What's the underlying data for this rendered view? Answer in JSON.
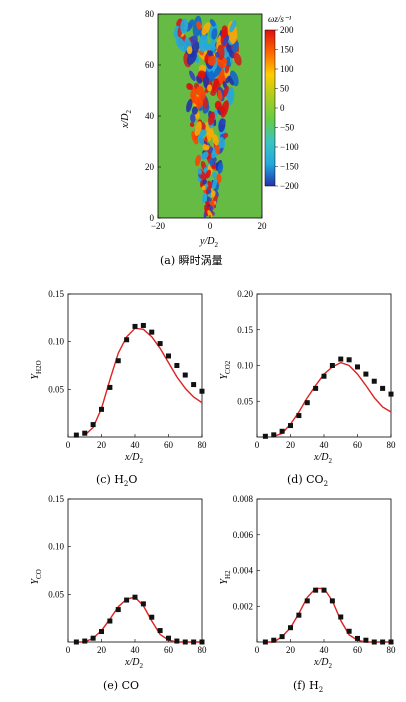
{
  "figure": {
    "colorbar": {
      "title": "ωz/s⁻¹",
      "ticks": [
        "200",
        "150",
        "100",
        "50",
        "0",
        "−50",
        "−100",
        "−150",
        "−200"
      ],
      "range": [
        -200,
        200
      ],
      "colors": [
        "#2233aa",
        "#22aadd",
        "#3cc4c0",
        "#66cc44",
        "#aacc22",
        "#ffcc00",
        "#ff6600",
        "#dd1111"
      ]
    },
    "vorticity_map": {
      "type": "heatmap",
      "background_color": "#66bb44",
      "xticks": [
        "−20",
        "0",
        "20"
      ],
      "yticks": [
        "0",
        "20",
        "40",
        "60",
        "80"
      ],
      "xlim": [
        -20,
        20
      ],
      "ylim": [
        0,
        80
      ],
      "xlabel": "y/D",
      "xlabel_sub": "2",
      "ylabel": "x/D",
      "ylabel_sub": "2"
    },
    "captions": {
      "a": "(a) 瞬时涡量",
      "c": "(c) H",
      "c_sub": "2",
      "c_tail": "O",
      "d": "(d) CO",
      "d_sub": "2",
      "e": "(e) CO",
      "f": "(f) H",
      "f_sub": "2"
    }
  },
  "chart_data": [
    {
      "type": "line",
      "id": "c",
      "ylabel": "Y",
      "ylabel_sub": "H2O",
      "xlabel": "x/D",
      "xlabel_sub": "2",
      "xlim": [
        0,
        80
      ],
      "ylim": [
        0,
        0.15
      ],
      "xticks": [
        "0",
        "20",
        "40",
        "60",
        "80"
      ],
      "yticks": [
        "0.05",
        "0.10",
        "0.15"
      ],
      "ytick_values": [
        0.05,
        0.1,
        0.15
      ],
      "series": [
        {
          "style": "line",
          "color": "#dd2222",
          "x": [
            10,
            15,
            20,
            25,
            30,
            35,
            40,
            45,
            50,
            55,
            60,
            65,
            70,
            75,
            80
          ],
          "y": [
            0.002,
            0.01,
            0.03,
            0.06,
            0.088,
            0.105,
            0.114,
            0.113,
            0.105,
            0.093,
            0.078,
            0.063,
            0.051,
            0.042,
            0.036
          ]
        },
        {
          "style": "markers",
          "color": "#111111",
          "x": [
            5,
            10,
            15,
            20,
            25,
            30,
            35,
            40,
            45,
            50,
            55,
            60,
            65,
            70,
            75,
            80
          ],
          "y": [
            0.002,
            0.004,
            0.013,
            0.029,
            0.052,
            0.08,
            0.102,
            0.116,
            0.117,
            0.11,
            0.098,
            0.085,
            0.075,
            0.065,
            0.055,
            0.048
          ]
        }
      ]
    },
    {
      "type": "line",
      "id": "d",
      "ylabel": "Y",
      "ylabel_sub": "CO2",
      "xlabel": "x/D",
      "xlabel_sub": "2",
      "xlim": [
        0,
        80
      ],
      "ylim": [
        0,
        0.2
      ],
      "xticks": [
        "0",
        "20",
        "40",
        "60",
        "80"
      ],
      "yticks": [
        "0.05",
        "0.10",
        "0.15",
        "0.20"
      ],
      "ytick_values": [
        0.05,
        0.1,
        0.15,
        0.2
      ],
      "series": [
        {
          "style": "line",
          "color": "#dd2222",
          "x": [
            10,
            15,
            20,
            25,
            30,
            35,
            40,
            45,
            50,
            55,
            60,
            65,
            70,
            75,
            80
          ],
          "y": [
            0.001,
            0.005,
            0.018,
            0.035,
            0.055,
            0.072,
            0.088,
            0.098,
            0.104,
            0.1,
            0.088,
            0.072,
            0.055,
            0.042,
            0.035
          ]
        },
        {
          "style": "markers",
          "color": "#111111",
          "x": [
            5,
            10,
            15,
            20,
            25,
            30,
            35,
            40,
            45,
            50,
            55,
            60,
            65,
            70,
            75,
            80
          ],
          "y": [
            0.001,
            0.003,
            0.008,
            0.016,
            0.03,
            0.048,
            0.068,
            0.085,
            0.1,
            0.109,
            0.108,
            0.098,
            0.088,
            0.078,
            0.068,
            0.06
          ]
        }
      ]
    },
    {
      "type": "line",
      "id": "e",
      "ylabel": "Y",
      "ylabel_sub": "CO",
      "xlabel": "x/D",
      "xlabel_sub": "2",
      "xlim": [
        0,
        80
      ],
      "ylim": [
        0,
        0.15
      ],
      "xticks": [
        "0",
        "20",
        "40",
        "60",
        "80"
      ],
      "yticks": [
        "0.05",
        "0.10",
        "0.15"
      ],
      "ytick_values": [
        0.05,
        0.1,
        0.15
      ],
      "series": [
        {
          "style": "line",
          "color": "#dd2222",
          "x": [
            5,
            10,
            15,
            20,
            25,
            30,
            35,
            40,
            45,
            50,
            55,
            60,
            65,
            70,
            75,
            80
          ],
          "y": [
            0.0,
            0.0,
            0.004,
            0.012,
            0.024,
            0.037,
            0.045,
            0.047,
            0.038,
            0.022,
            0.008,
            0.002,
            0.0,
            0.0,
            0.0,
            0.0
          ]
        },
        {
          "style": "markers",
          "color": "#111111",
          "x": [
            5,
            10,
            15,
            20,
            25,
            30,
            35,
            40,
            45,
            50,
            55,
            60,
            65,
            70,
            75,
            80
          ],
          "y": [
            0.0,
            0.001,
            0.004,
            0.011,
            0.022,
            0.034,
            0.044,
            0.047,
            0.04,
            0.026,
            0.012,
            0.004,
            0.001,
            0.0,
            0.0,
            0.0
          ]
        }
      ]
    },
    {
      "type": "line",
      "id": "f",
      "ylabel": "Y",
      "ylabel_sub": "H2",
      "xlabel": "x/D",
      "xlabel_sub": "2",
      "xlim": [
        0,
        80
      ],
      "ylim": [
        0,
        0.008
      ],
      "xticks": [
        "0",
        "20",
        "40",
        "60",
        "80"
      ],
      "yticks": [
        "0.002",
        "0.004",
        "0.006",
        "0.008"
      ],
      "ytick_values": [
        0.002,
        0.004,
        0.006,
        0.008
      ],
      "series": [
        {
          "style": "line",
          "color": "#dd2222",
          "x": [
            5,
            10,
            15,
            20,
            25,
            30,
            35,
            40,
            45,
            50,
            55,
            60,
            65,
            70,
            75,
            80
          ],
          "y": [
            0.0,
            0.0,
            0.0003,
            0.0008,
            0.0016,
            0.0025,
            0.003,
            0.003,
            0.0023,
            0.0012,
            0.0004,
            0.0001,
            0.0,
            0.0,
            0.0,
            0.0
          ]
        },
        {
          "style": "markers",
          "color": "#111111",
          "x": [
            5,
            10,
            15,
            20,
            25,
            30,
            35,
            40,
            45,
            50,
            55,
            60,
            65,
            70,
            75,
            80
          ],
          "y": [
            0.0,
            0.0001,
            0.0003,
            0.0008,
            0.0015,
            0.0023,
            0.0029,
            0.0029,
            0.0023,
            0.0014,
            0.0006,
            0.0002,
            0.0001,
            0.0,
            0.0,
            0.0
          ]
        }
      ]
    }
  ]
}
